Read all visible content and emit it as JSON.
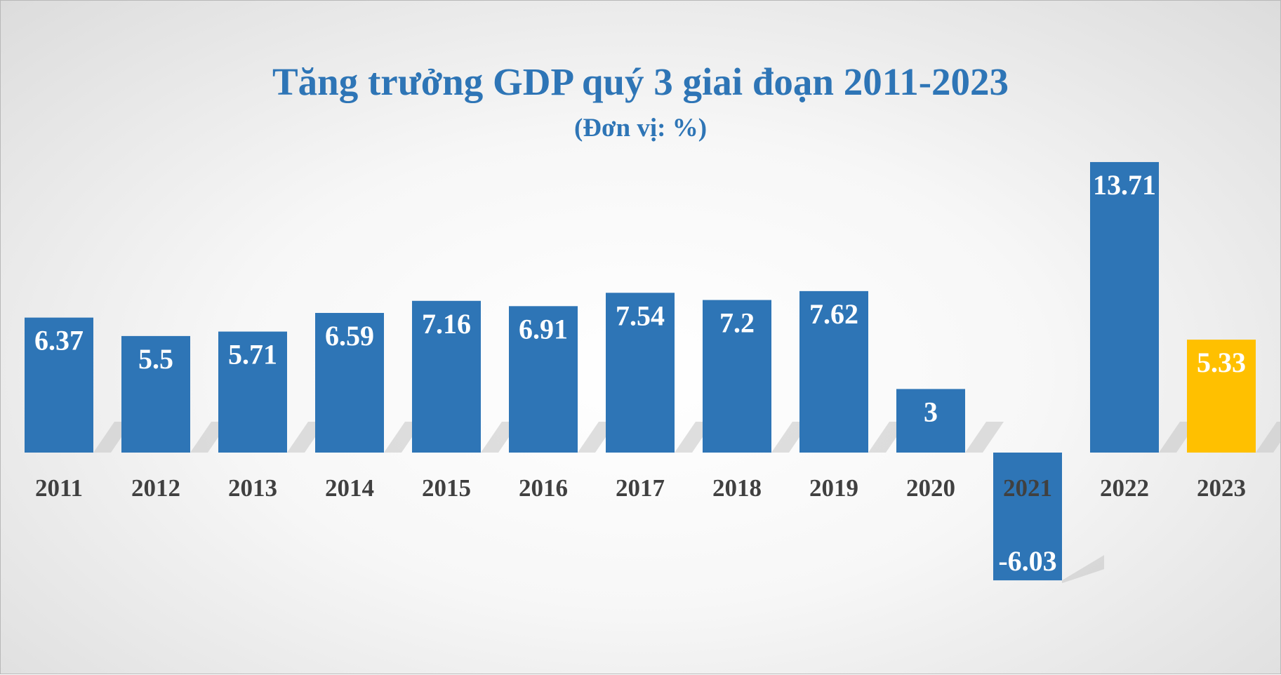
{
  "chart_data": {
    "type": "bar",
    "title": "Tăng trưởng GDP quý 3 giai đoạn 2011-2023",
    "subtitle": "(Đơn vị: %)",
    "categories": [
      "2011",
      "2012",
      "2013",
      "2014",
      "2015",
      "2016",
      "2017",
      "2018",
      "2019",
      "2020",
      "2021",
      "2022",
      "2023"
    ],
    "values": [
      6.37,
      5.5,
      5.71,
      6.59,
      7.16,
      6.91,
      7.54,
      7.2,
      7.62,
      3,
      -6.03,
      13.71,
      5.33
    ],
    "value_labels": [
      "6.37",
      "5.5",
      "5.71",
      "6.59",
      "7.16",
      "6.91",
      "7.54",
      "7.2",
      "7.62",
      "3",
      "-6.03",
      "13.71",
      "5.33"
    ],
    "colors": {
      "default": "#2e75b6",
      "highlight": "#ffc000",
      "label": "#ffffff",
      "tick": "#404040",
      "shadow": "#c4c4c4"
    },
    "highlight_index": 12,
    "ylim": [
      -7,
      14
    ],
    "grid": false,
    "legend": "none"
  }
}
